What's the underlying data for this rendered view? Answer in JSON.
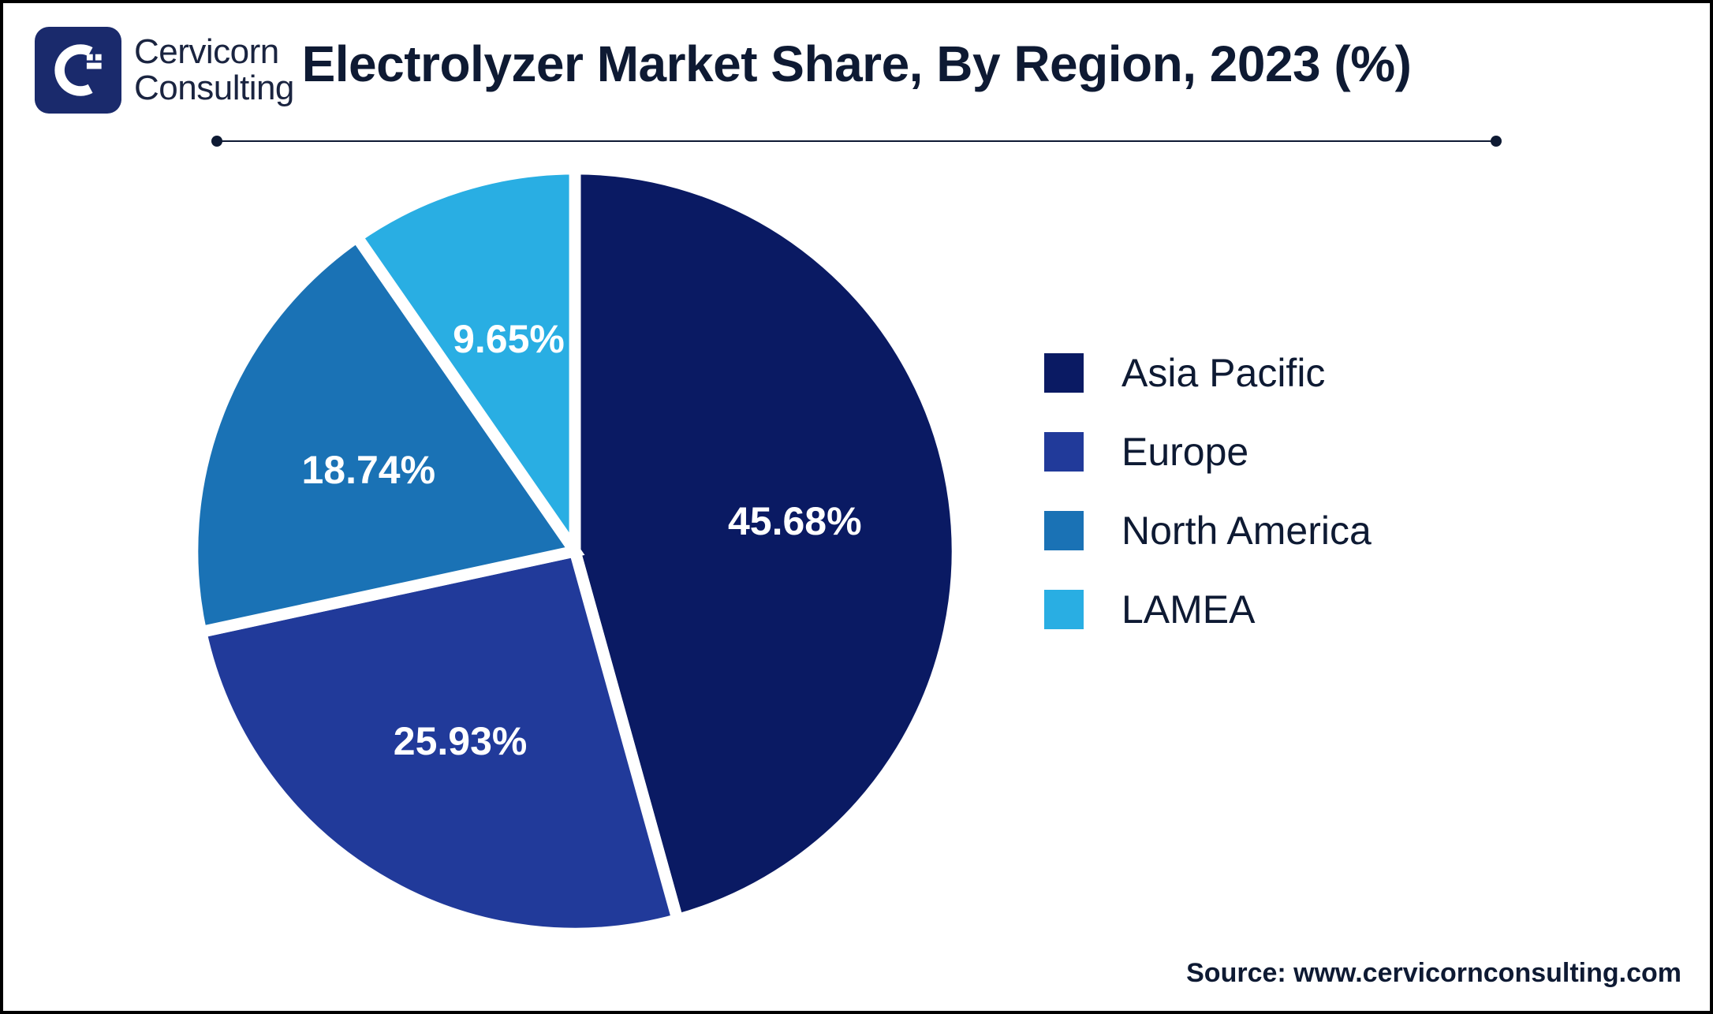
{
  "logo": {
    "line1": "Cervicorn",
    "line2": "Consulting",
    "mark_bg": "#1a2a6c",
    "mark_fg": "#ffffff"
  },
  "title": "Electrolyzer Market Share, By Region, 2023 (%)",
  "divider_color": "#0e1a33",
  "chart": {
    "type": "pie",
    "background_color": "#ffffff",
    "stroke_color": "#ffffff",
    "stroke_width": 3,
    "label_color": "#ffffff",
    "label_fontsize": 50,
    "legend_fontsize": 50,
    "legend_text_color": "#0e1a33",
    "slices": [
      {
        "label": "Asia Pacific",
        "value": 45.68,
        "display": "45.68%",
        "color": "#0a1a63"
      },
      {
        "label": "Europe",
        "value": 25.93,
        "display": "25.93%",
        "color": "#213a9a"
      },
      {
        "label": "North America",
        "value": 18.74,
        "display": "18.74%",
        "color": "#1a72b5"
      },
      {
        "label": "LAMEA",
        "value": 9.65,
        "display": "9.65%",
        "color": "#29aee3"
      }
    ]
  },
  "source": "Source: www.cervicornconsulting.com"
}
